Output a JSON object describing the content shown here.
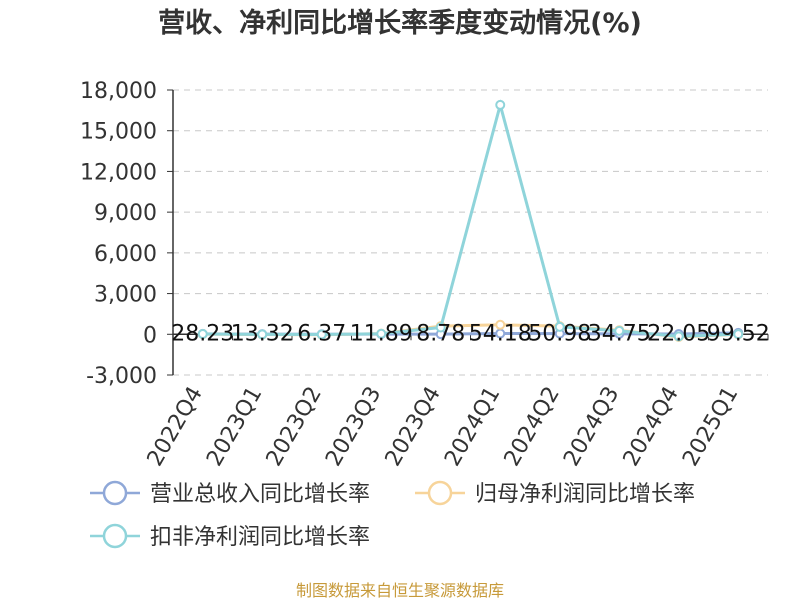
{
  "chart_data": {
    "type": "line",
    "title": "营收、净利同比增长率季度变动情况(%)",
    "categories": [
      "2022Q4",
      "2023Q1",
      "2023Q2",
      "2023Q3",
      "2023Q4",
      "2024Q1",
      "2024Q2",
      "2024Q3",
      "2024Q4",
      "2025Q1"
    ],
    "ylim": [
      -3000,
      18000
    ],
    "yticks": [
      -3000,
      0,
      3000,
      6000,
      9000,
      12000,
      15000,
      18000
    ],
    "ytick_labels": [
      "-3,000",
      "0",
      "3,000",
      "6,000",
      "9,000",
      "12,000",
      "15,000",
      "18,000"
    ],
    "grid": true,
    "legend_position": "bottom-left",
    "series": [
      {
        "name": "营业总收入同比增长率",
        "color": "#8fa8d8",
        "values": [
          28.23,
          13.32,
          6.37,
          11.89,
          8.78,
          54.18,
          50.98,
          34.75,
          22.05,
          99.52
        ]
      },
      {
        "name": "归母净利润同比增长率",
        "color": "#f7d49a",
        "values": [
          10,
          -20,
          -30,
          50,
          600,
          700,
          600,
          300,
          -200,
          0
        ]
      },
      {
        "name": "扣非净利润同比增长率",
        "color": "#8fd4da",
        "values": [
          20,
          -10,
          -20,
          40,
          500,
          16900,
          550,
          250,
          -150,
          10
        ]
      }
    ],
    "data_labels": [
      "28.23",
      "13.32",
      "6.37",
      "11.89",
      "8.78",
      "54.18",
      "50.98",
      "34.75",
      "22.05",
      "99.52"
    ],
    "source": "制图数据来自恒生聚源数据库"
  }
}
